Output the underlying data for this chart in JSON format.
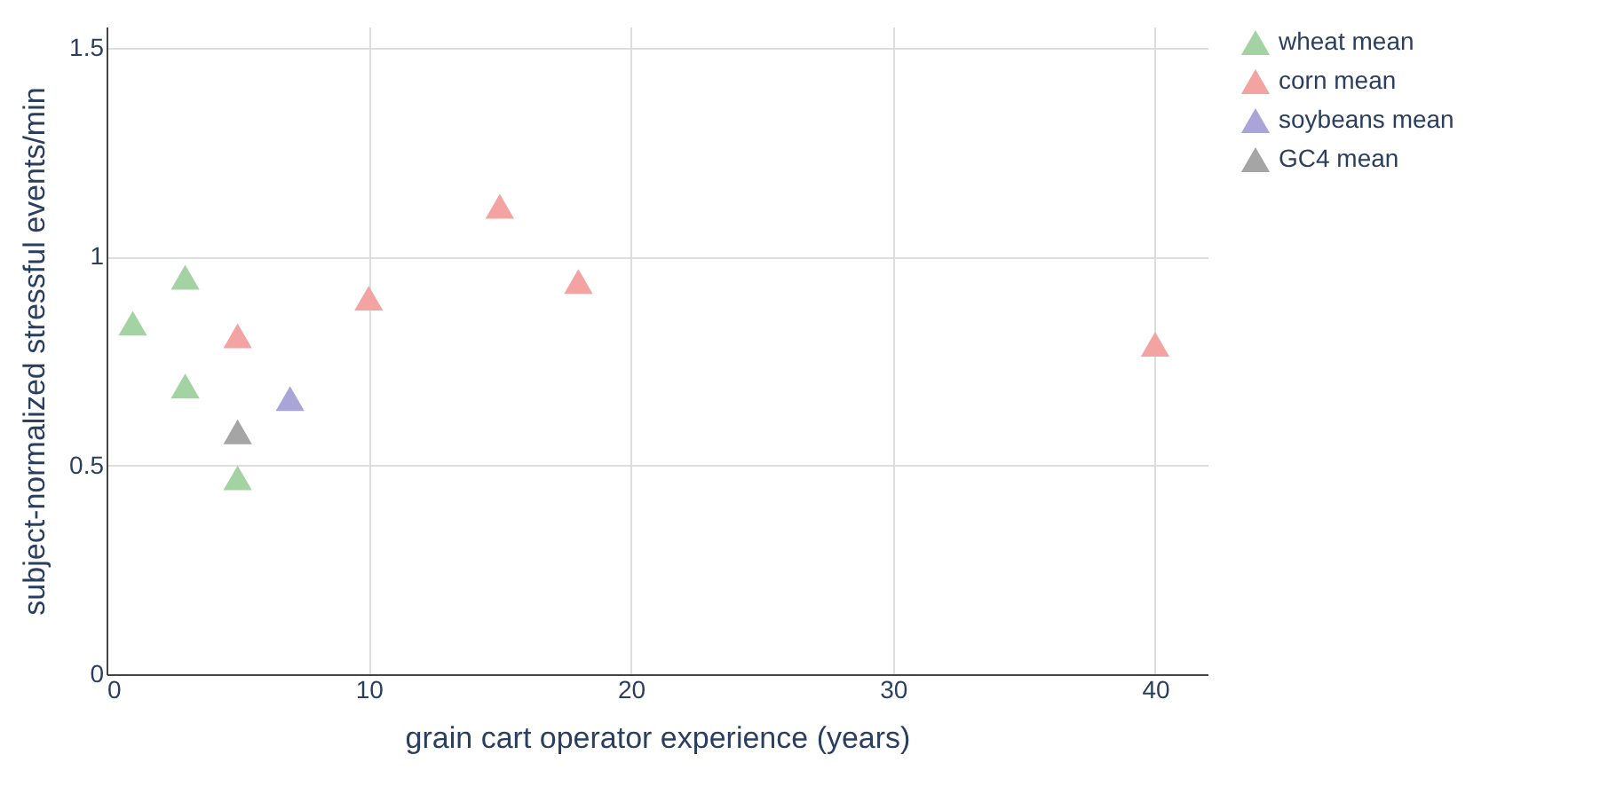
{
  "chart_data": {
    "type": "scatter",
    "xlabel": "grain cart operator experience (years)",
    "ylabel": "subject-normalized stressful events/min",
    "xlim": [
      0,
      42
    ],
    "ylim": [
      0,
      1.55
    ],
    "xticks": [
      0,
      10,
      20,
      30,
      40
    ],
    "yticks": [
      0,
      0.5,
      1,
      1.5
    ],
    "grid": true,
    "legend": "top right",
    "marker": "triangle",
    "series": [
      {
        "name": "wheat mean",
        "color": "#a3d3a3",
        "x": [
          1,
          3,
          3,
          5
        ],
        "values": [
          0.84,
          0.95,
          0.69,
          0.47
        ]
      },
      {
        "name": "corn mean",
        "color": "#f4a3a3",
        "x": [
          5,
          10,
          15,
          18,
          40
        ],
        "values": [
          0.81,
          0.9,
          1.12,
          0.94,
          0.79
        ]
      },
      {
        "name": "soybeans mean",
        "color": "#aaa5d8",
        "x": [
          7
        ],
        "values": [
          0.66
        ]
      },
      {
        "name": "GC4 mean",
        "color": "#a5a5a5",
        "x": [
          5
        ],
        "values": [
          0.58
        ]
      }
    ]
  }
}
